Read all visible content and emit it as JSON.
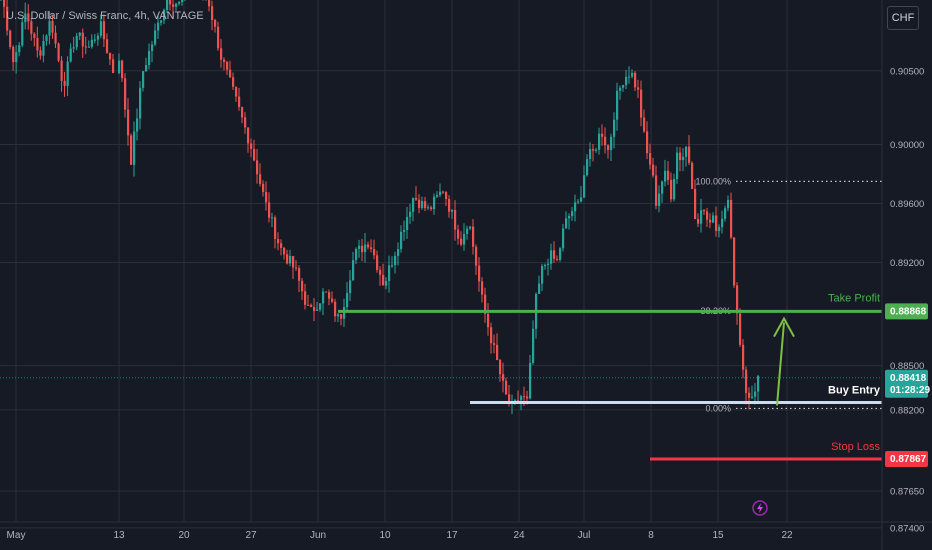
{
  "symbol_title": "U.S. Dollar / Swiss Franc, 4h, VANTAGE",
  "currency_button": "CHF",
  "colors": {
    "background": "#161a25",
    "grid": "#2a2e39",
    "up_candle": "#26a69a",
    "down_candle": "#ef5350",
    "take_profit": "#4caf50",
    "buy_entry": "#c9dcf0",
    "stop_loss": "#f23645",
    "arrow": "#7cc242",
    "price_tag": "#26a69a"
  },
  "chart_data": {
    "type": "candlestick",
    "instrument": "USDCHF",
    "timeframe": "4h",
    "ylim": [
      0.8725,
      0.9098
    ],
    "y_ticks": [
      "0.90500",
      "0.90000",
      "0.89600",
      "0.89200",
      "0.88500",
      "0.88200",
      "0.87650",
      "0.87400"
    ],
    "y_tick_values": [
      0.905,
      0.9,
      0.896,
      0.892,
      0.885,
      0.882,
      0.8765,
      0.874
    ],
    "x_ticks": [
      "May",
      "13",
      "20",
      "27",
      "Jun",
      "10",
      "17",
      "24",
      "Jul",
      "8",
      "15",
      "22"
    ],
    "price_path": [
      [
        0.9105,
        0.9055,
        0.909,
        0.906,
        0.9085,
        0.904,
        0.9075,
        0.9065,
        0.908,
        0.905
      ],
      [
        0.906,
        0.899,
        0.905,
        0.9075,
        0.91,
        0.9095,
        0.911,
        0.91
      ],
      [
        0.9105,
        0.906,
        0.903,
        0.9,
        0.896,
        0.893,
        0.8915,
        0.8885,
        0.89,
        0.888,
        0.8925,
        0.8935,
        0.8905,
        0.8935,
        0.8965,
        0.8955,
        0.897,
        0.894
      ],
      [
        0.8935,
        0.895,
        0.892,
        0.889,
        0.887,
        0.885,
        0.883,
        0.882,
        0.883,
        0.8825,
        0.889,
        0.8915,
        0.8925,
        0.892,
        0.8945,
        0.8955,
        0.896,
        0.899,
        0.8995,
        0.901,
        0.8995,
        0.903,
        0.9045,
        0.905,
        0.9035
      ],
      [
        0.902,
        0.8995,
        0.8985,
        0.896,
        0.8975,
        0.898,
        0.8965,
        0.8995,
        0.899,
        0.9,
        0.8975,
        0.894,
        0.896,
        0.8945,
        0.8955,
        0.894,
        0.8955,
        0.8965,
        0.892,
        0.888,
        0.885,
        0.8825,
        0.883,
        0.8842
      ]
    ],
    "current_price": "0.88418",
    "countdown": "01:28:29",
    "fib_levels": [
      {
        "label": "100.00%",
        "value": 0.8975
      },
      {
        "label": "38.20%",
        "value": 0.8887
      },
      {
        "label": "0.00%",
        "value": 0.8821
      }
    ],
    "levels": {
      "take_profit": {
        "label": "Take Profit",
        "price": "0.88868",
        "value": 0.88868
      },
      "buy_entry": {
        "label": "Buy Entry",
        "value": 0.8825
      },
      "stop_loss": {
        "label": "Stop Loss",
        "price": "0.87867",
        "value": 0.87867
      }
    },
    "arrow": {
      "direction": "up",
      "from": 0.8823,
      "to": 0.8886
    }
  }
}
